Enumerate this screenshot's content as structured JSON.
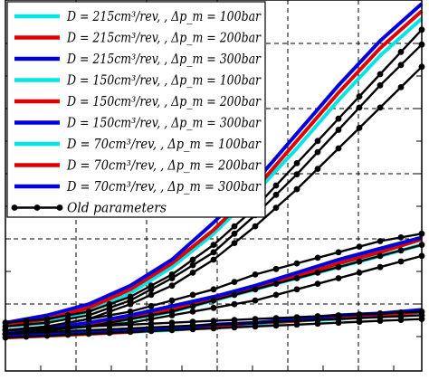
{
  "chart_data": {
    "type": "line",
    "title": "",
    "xlabel": "",
    "ylabel": "",
    "xlim": [
      0,
      1
    ],
    "ylim": [
      0,
      1
    ],
    "grid": true,
    "legend_position": "top-left",
    "x": [
      0,
      0.1,
      0.2,
      0.3,
      0.4,
      0.5,
      0.6,
      0.7,
      0.8,
      0.9,
      1.0
    ],
    "series": [
      {
        "name": "D = 215cm³/rev, , Δp_m = 100bar",
        "color": "#00e5e5",
        "values": [
          0.12,
          0.13,
          0.16,
          0.21,
          0.28,
          0.37,
          0.48,
          0.6,
          0.73,
          0.85,
          0.95
        ]
      },
      {
        "name": "D = 215cm³/rev, , Δp_m = 200bar",
        "color": "#e00000",
        "values": [
          0.125,
          0.14,
          0.17,
          0.22,
          0.29,
          0.38,
          0.49,
          0.62,
          0.75,
          0.87,
          0.97
        ]
      },
      {
        "name": "D = 215cm³/rev, , Δp_m = 300bar",
        "color": "#0000dd",
        "values": [
          0.13,
          0.15,
          0.18,
          0.23,
          0.3,
          0.4,
          0.51,
          0.64,
          0.77,
          0.89,
          0.99
        ]
      },
      {
        "name": "D = 150cm³/rev, , Δp_m = 100bar",
        "color": "#00e5e5",
        "values": [
          0.1,
          0.11,
          0.12,
          0.14,
          0.16,
          0.19,
          0.22,
          0.25,
          0.28,
          0.31,
          0.34
        ]
      },
      {
        "name": "D = 150cm³/rev, , Δp_m = 200bar",
        "color": "#e00000",
        "values": [
          0.1,
          0.11,
          0.125,
          0.145,
          0.165,
          0.195,
          0.225,
          0.255,
          0.29,
          0.32,
          0.355
        ]
      },
      {
        "name": "D = 150cm³/rev, , Δp_m = 300bar",
        "color": "#0000dd",
        "values": [
          0.105,
          0.115,
          0.13,
          0.15,
          0.175,
          0.2,
          0.23,
          0.265,
          0.3,
          0.33,
          0.36
        ]
      },
      {
        "name": "D = 70cm³/rev, , Δp_m = 100bar",
        "color": "#00e5e5",
        "values": [
          0.09,
          0.095,
          0.1,
          0.105,
          0.11,
          0.12,
          0.125,
          0.135,
          0.14,
          0.15,
          0.155
        ]
      },
      {
        "name": "D = 70cm³/rev, , Δp_m = 200bar",
        "color": "#e00000",
        "values": [
          0.09,
          0.095,
          0.1,
          0.105,
          0.115,
          0.12,
          0.13,
          0.135,
          0.145,
          0.15,
          0.16
        ]
      },
      {
        "name": "D = 70cm³/rev, , Δp_m = 300bar",
        "color": "#0000dd",
        "values": [
          0.095,
          0.1,
          0.105,
          0.11,
          0.115,
          0.125,
          0.13,
          0.14,
          0.15,
          0.155,
          0.165
        ]
      },
      {
        "name": "Old parameters",
        "color": "#000000",
        "marker": "circle",
        "values": [
          0.13,
          0.14,
          0.16,
          0.2,
          0.26,
          0.34,
          0.44,
          0.56,
          0.68,
          0.8,
          0.92
        ]
      },
      {
        "name": "",
        "color": "#000000",
        "marker": "circle",
        "values": [
          0.12,
          0.13,
          0.15,
          0.19,
          0.25,
          0.32,
          0.42,
          0.53,
          0.65,
          0.77,
          0.88
        ]
      },
      {
        "name": "",
        "color": "#000000",
        "marker": "circle",
        "values": [
          0.11,
          0.12,
          0.14,
          0.18,
          0.23,
          0.3,
          0.39,
          0.49,
          0.6,
          0.71,
          0.82
        ]
      },
      {
        "name": "",
        "color": "#000000",
        "marker": "circle",
        "values": [
          0.11,
          0.12,
          0.14,
          0.16,
          0.19,
          0.22,
          0.26,
          0.29,
          0.32,
          0.35,
          0.37
        ]
      },
      {
        "name": "",
        "color": "#000000",
        "marker": "circle",
        "values": [
          0.1,
          0.11,
          0.12,
          0.14,
          0.16,
          0.19,
          0.22,
          0.25,
          0.28,
          0.31,
          0.34
        ]
      },
      {
        "name": "",
        "color": "#000000",
        "marker": "circle",
        "values": [
          0.1,
          0.11,
          0.12,
          0.13,
          0.15,
          0.17,
          0.19,
          0.22,
          0.25,
          0.28,
          0.31
        ]
      },
      {
        "name": "",
        "color": "#000000",
        "marker": "circle",
        "values": [
          0.11,
          0.115,
          0.12,
          0.125,
          0.13,
          0.135,
          0.14,
          0.145,
          0.15,
          0.155,
          0.16
        ]
      },
      {
        "name": "",
        "color": "#000000",
        "marker": "circle",
        "values": [
          0.1,
          0.105,
          0.11,
          0.115,
          0.12,
          0.125,
          0.13,
          0.135,
          0.14,
          0.145,
          0.15
        ]
      },
      {
        "name": "",
        "color": "#000000",
        "marker": "circle",
        "values": [
          0.09,
          0.095,
          0.1,
          0.105,
          0.11,
          0.115,
          0.12,
          0.125,
          0.13,
          0.135,
          0.14
        ]
      }
    ]
  }
}
